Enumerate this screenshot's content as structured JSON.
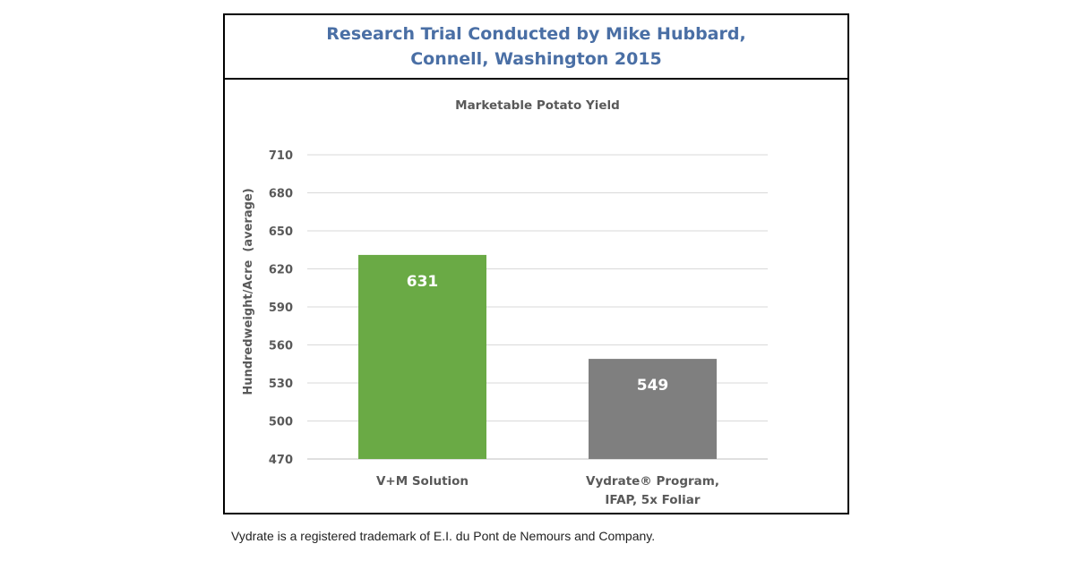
{
  "header": {
    "title_line1": "Research Trial Conducted by Mike Hubbard,",
    "title_line2": "Connell, Washington 2015"
  },
  "chart_data": {
    "type": "bar",
    "title": "Marketable Potato Yield",
    "ylabel": "Hundredweight/Acre  (average)",
    "xlabel": "",
    "ylim": [
      470,
      710
    ],
    "yticks": [
      470,
      500,
      530,
      560,
      590,
      620,
      650,
      680,
      710
    ],
    "grid": true,
    "categories": [
      {
        "lines": [
          "V+M Solution"
        ],
        "value": 631,
        "color": "#6aaa45",
        "label": "631"
      },
      {
        "lines": [
          "Vydrate® Program,",
          "IFAP, 5x Foliar"
        ],
        "value": 549,
        "color": "#7f7f7f",
        "label": "549"
      }
    ]
  },
  "footnote": "Vydrate is a registered trademark of E.I. du Pont de Nemours and Company."
}
